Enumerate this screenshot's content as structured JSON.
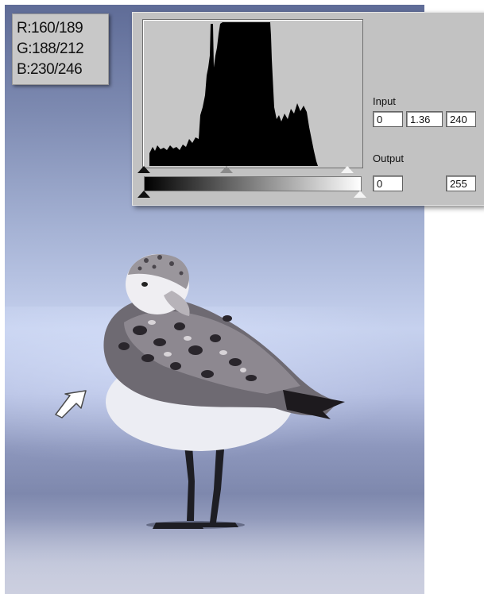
{
  "info_panel": {
    "r": "R:160/189",
    "g": "G:188/212",
    "b": "B:230/246"
  },
  "levels": {
    "input_label": "Input",
    "input_black": "0",
    "input_gamma": "1.36",
    "input_white": "240",
    "output_label": "Output",
    "output_black": "0",
    "output_white": "255"
  },
  "icons": [
    "arrow-pointer-icon",
    "black-point-slider-icon",
    "gamma-slider-icon",
    "white-point-slider-icon"
  ],
  "colors": {
    "panel_bg": "#c2c2c2",
    "sky_top": "#5f6c97",
    "sky_mid": "#c6d1ee",
    "sand": "#c3c7da"
  }
}
